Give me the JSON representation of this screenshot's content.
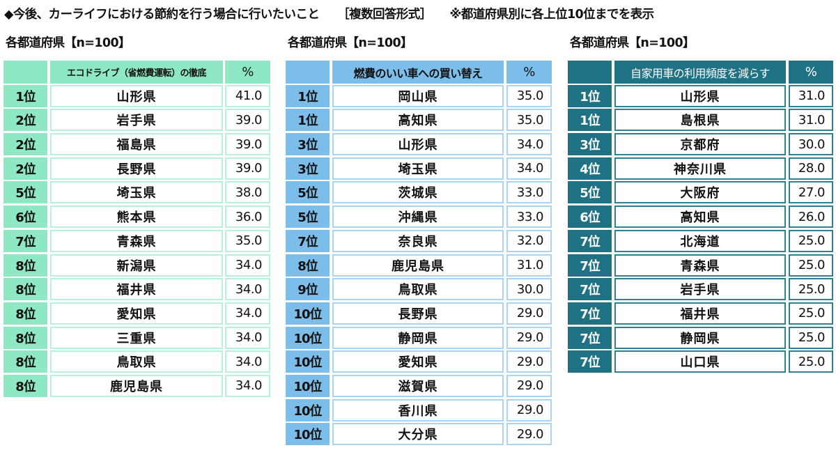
{
  "header": {
    "title": "◆今後、カーライフにおける節約を行う場合に行いたいこと",
    "format": "［複数回答形式］",
    "note": "※都道府県別に各上位10位までを表示"
  },
  "colors": {
    "table1": "#8ee8c4",
    "table2": "#7dbde9",
    "table3": "#1f7283"
  },
  "tables": [
    {
      "subtitle": "各都道府県【n=100】",
      "column_header": "エコドライブ（省燃費運転）の徹底",
      "pct_header": "%",
      "rows": [
        {
          "rank": "1位",
          "pref": "山形県",
          "pct": "41.0"
        },
        {
          "rank": "2位",
          "pref": "岩手県",
          "pct": "39.0"
        },
        {
          "rank": "2位",
          "pref": "福島県",
          "pct": "39.0"
        },
        {
          "rank": "2位",
          "pref": "長野県",
          "pct": "39.0"
        },
        {
          "rank": "5位",
          "pref": "埼玉県",
          "pct": "38.0"
        },
        {
          "rank": "6位",
          "pref": "熊本県",
          "pct": "36.0"
        },
        {
          "rank": "7位",
          "pref": "青森県",
          "pct": "35.0"
        },
        {
          "rank": "8位",
          "pref": "新潟県",
          "pct": "34.0"
        },
        {
          "rank": "8位",
          "pref": "福井県",
          "pct": "34.0"
        },
        {
          "rank": "8位",
          "pref": "愛知県",
          "pct": "34.0"
        },
        {
          "rank": "8位",
          "pref": "三重県",
          "pct": "34.0"
        },
        {
          "rank": "8位",
          "pref": "鳥取県",
          "pct": "34.0"
        },
        {
          "rank": "8位",
          "pref": "鹿児島県",
          "pct": "34.0"
        }
      ]
    },
    {
      "subtitle": "各都道府県【n=100】",
      "column_header": "燃費のいい車への買い替え",
      "pct_header": "%",
      "rows": [
        {
          "rank": "1位",
          "pref": "岡山県",
          "pct": "35.0"
        },
        {
          "rank": "1位",
          "pref": "高知県",
          "pct": "35.0"
        },
        {
          "rank": "3位",
          "pref": "山形県",
          "pct": "34.0"
        },
        {
          "rank": "3位",
          "pref": "埼玉県",
          "pct": "34.0"
        },
        {
          "rank": "5位",
          "pref": "茨城県",
          "pct": "33.0"
        },
        {
          "rank": "5位",
          "pref": "沖縄県",
          "pct": "33.0"
        },
        {
          "rank": "7位",
          "pref": "奈良県",
          "pct": "32.0"
        },
        {
          "rank": "8位",
          "pref": "鹿児島県",
          "pct": "31.0"
        },
        {
          "rank": "9位",
          "pref": "鳥取県",
          "pct": "30.0"
        },
        {
          "rank": "10位",
          "pref": "長野県",
          "pct": "29.0"
        },
        {
          "rank": "10位",
          "pref": "静岡県",
          "pct": "29.0"
        },
        {
          "rank": "10位",
          "pref": "愛知県",
          "pct": "29.0"
        },
        {
          "rank": "10位",
          "pref": "滋賀県",
          "pct": "29.0"
        },
        {
          "rank": "10位",
          "pref": "香川県",
          "pct": "29.0"
        },
        {
          "rank": "10位",
          "pref": "大分県",
          "pct": "29.0"
        }
      ]
    },
    {
      "subtitle": "各都道府県【n=100】",
      "column_header": "自家用車の利用頻度を減らす",
      "pct_header": "%",
      "rows": [
        {
          "rank": "1位",
          "pref": "山形県",
          "pct": "31.0"
        },
        {
          "rank": "1位",
          "pref": "島根県",
          "pct": "31.0"
        },
        {
          "rank": "3位",
          "pref": "京都府",
          "pct": "30.0"
        },
        {
          "rank": "4位",
          "pref": "神奈川県",
          "pct": "28.0"
        },
        {
          "rank": "5位",
          "pref": "大阪府",
          "pct": "27.0"
        },
        {
          "rank": "6位",
          "pref": "高知県",
          "pct": "26.0"
        },
        {
          "rank": "7位",
          "pref": "北海道",
          "pct": "25.0"
        },
        {
          "rank": "7位",
          "pref": "青森県",
          "pct": "25.0"
        },
        {
          "rank": "7位",
          "pref": "岩手県",
          "pct": "25.0"
        },
        {
          "rank": "7位",
          "pref": "福井県",
          "pct": "25.0"
        },
        {
          "rank": "7位",
          "pref": "静岡県",
          "pct": "25.0"
        },
        {
          "rank": "7位",
          "pref": "山口県",
          "pct": "25.0"
        }
      ]
    }
  ]
}
